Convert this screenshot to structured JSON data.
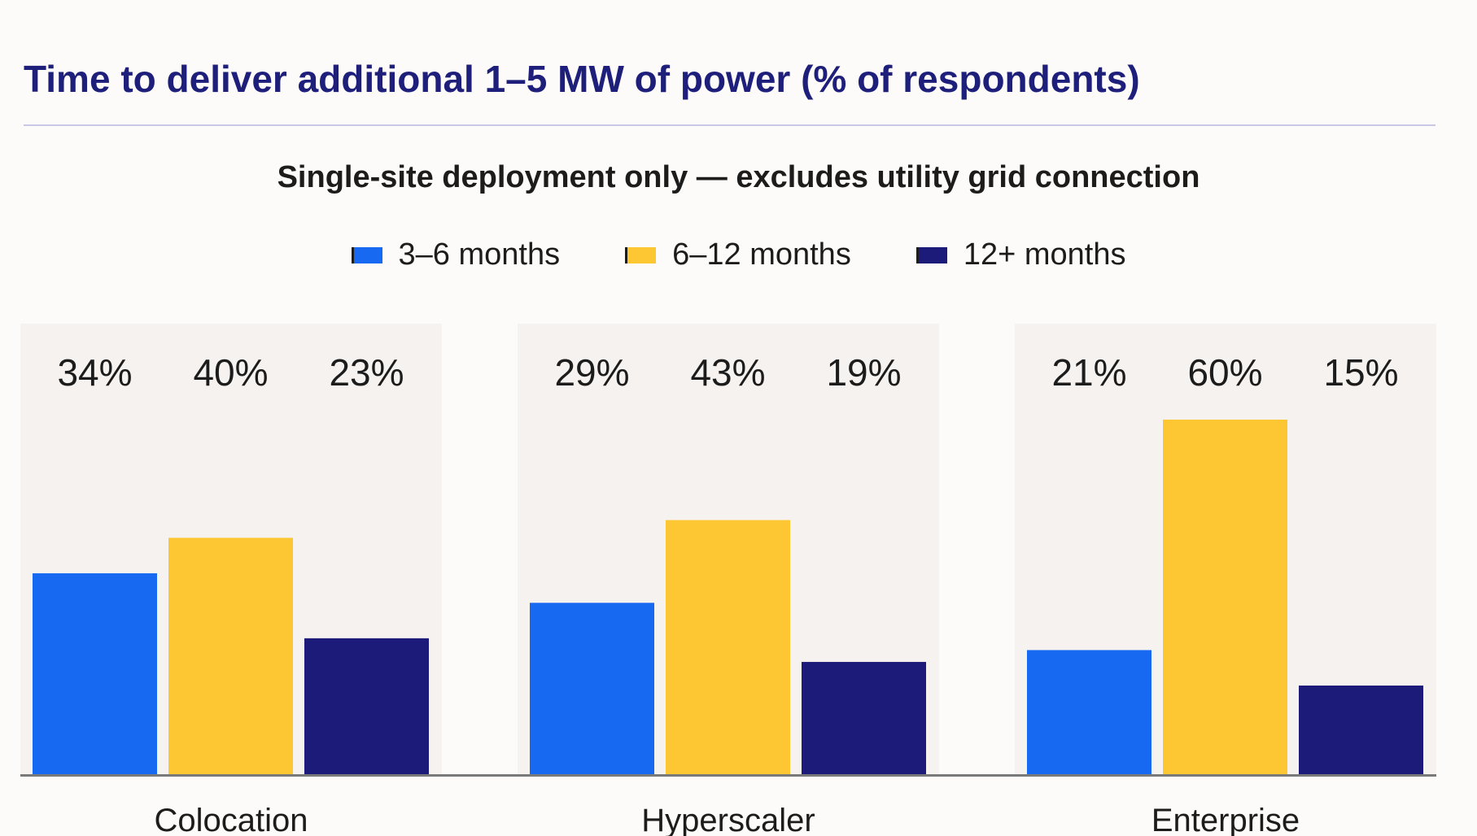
{
  "chart_data": {
    "type": "bar",
    "title": "Time to deliver additional 1–5 MW of power (% of respondents)",
    "subtitle": "Single-site deployment only — excludes utility grid connection",
    "categories": [
      "Colocation",
      "Hyperscaler",
      "Enterprise"
    ],
    "series": [
      {
        "name": "3–6 months",
        "color": "#1769f2",
        "values": [
          34,
          29,
          21
        ],
        "labels": [
          "34%",
          "29%",
          "21%"
        ]
      },
      {
        "name": "6–12 months",
        "color": "#fdc734",
        "values": [
          40,
          43,
          60
        ],
        "labels": [
          "40%",
          "43%",
          "60%"
        ]
      },
      {
        "name": "12+ months",
        "color": "#1d1b7a",
        "values": [
          23,
          19,
          15
        ],
        "labels": [
          "23%",
          "19%",
          "15%"
        ]
      }
    ],
    "ylim": [
      0,
      60
    ],
    "grid": false,
    "legend": "top-center",
    "panel_color": "#f6f2ef",
    "axis_color": "#7a7a7a"
  }
}
